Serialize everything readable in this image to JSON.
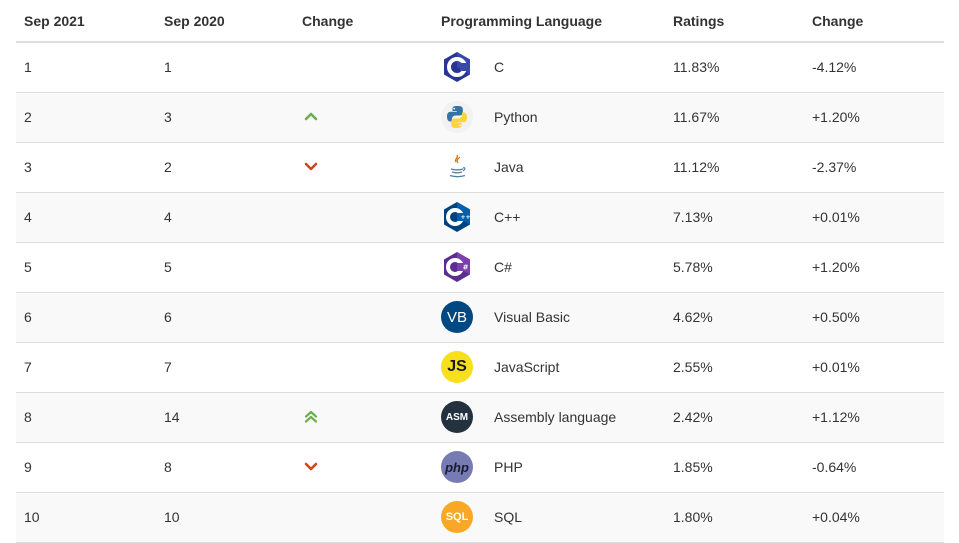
{
  "headers": {
    "sep2021": "Sep 2021",
    "sep2020": "Sep 2020",
    "change_rank": "Change",
    "language": "Programming Language",
    "ratings": "Ratings",
    "change_pct": "Change"
  },
  "rows": [
    {
      "rank2021": "1",
      "rank2020": "1",
      "trend": "none",
      "language": "C",
      "logo": "c-logo-icon",
      "ratings": "11.83%",
      "change": "-4.12%"
    },
    {
      "rank2021": "2",
      "rank2020": "3",
      "trend": "up",
      "language": "Python",
      "logo": "python-logo-icon",
      "ratings": "11.67%",
      "change": "+1.20%"
    },
    {
      "rank2021": "3",
      "rank2020": "2",
      "trend": "down",
      "language": "Java",
      "logo": "java-logo-icon",
      "ratings": "11.12%",
      "change": "-2.37%"
    },
    {
      "rank2021": "4",
      "rank2020": "4",
      "trend": "none",
      "language": "C++",
      "logo": "cpp-logo-icon",
      "ratings": "7.13%",
      "change": "+0.01%"
    },
    {
      "rank2021": "5",
      "rank2020": "5",
      "trend": "none",
      "language": "C#",
      "logo": "csharp-logo-icon",
      "ratings": "5.78%",
      "change": "+1.20%"
    },
    {
      "rank2021": "6",
      "rank2020": "6",
      "trend": "none",
      "language": "Visual Basic",
      "logo": "vb-logo-icon",
      "logo_text": "VB",
      "ratings": "4.62%",
      "change": "+0.50%"
    },
    {
      "rank2021": "7",
      "rank2020": "7",
      "trend": "none",
      "language": "JavaScript",
      "logo": "js-logo-icon",
      "logo_text": "JS",
      "ratings": "2.55%",
      "change": "+0.01%"
    },
    {
      "rank2021": "8",
      "rank2020": "14",
      "trend": "double-up",
      "language": "Assembly language",
      "logo": "asm-logo-icon",
      "logo_text": "ASM",
      "ratings": "2.42%",
      "change": "+1.12%"
    },
    {
      "rank2021": "9",
      "rank2020": "8",
      "trend": "down",
      "language": "PHP",
      "logo": "php-logo-icon",
      "logo_text": "php",
      "ratings": "1.85%",
      "change": "-0.64%"
    },
    {
      "rank2021": "10",
      "rank2020": "10",
      "trend": "none",
      "language": "SQL",
      "logo": "sql-logo-icon",
      "logo_text": "SQL",
      "ratings": "1.80%",
      "change": "+0.04%"
    }
  ],
  "colors": {
    "trend_up": "#6ab04c",
    "trend_down": "#d9411e",
    "border": "#dddddd",
    "stripe": "#f9f9f9"
  }
}
